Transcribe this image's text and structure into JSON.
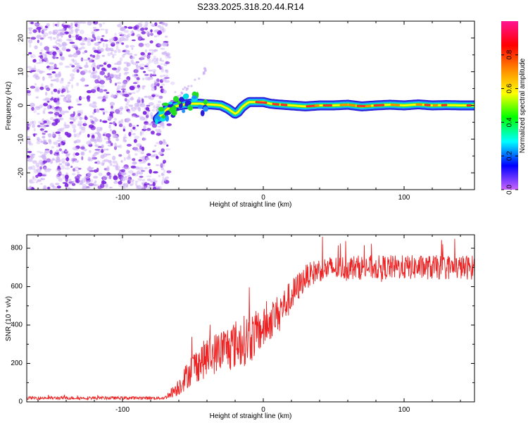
{
  "title": "S233.2025.318.20.44.R14",
  "colors": {
    "snr_line": "#ee2222",
    "scatter_purple": "#7a1fe0",
    "scatter_light": "#cdb2f5",
    "colorbar_stops": [
      "#cc66ff",
      "#0000ff",
      "#00ffff",
      "#00ff00",
      "#ffff00",
      "#ff8800",
      "#ff0000",
      "#ff1493"
    ]
  },
  "chart_data": [
    {
      "type": "heatmap",
      "name": "spectrogram",
      "xlabel": "Height of straight line (km)",
      "ylabel": "Frequency (Hz)",
      "xlim": [
        -168,
        150
      ],
      "ylim": [
        -25,
        25
      ],
      "x_ticks": [
        -100,
        0,
        100
      ],
      "x_tick_labels": [
        "-100",
        "0",
        "100"
      ],
      "y_ticks": [
        -20,
        -10,
        0,
        10,
        20
      ],
      "y_tick_labels": [
        "-20",
        "-10",
        "0",
        "10",
        "20"
      ],
      "noise_region_x": [
        -168,
        -68
      ],
      "ridge": {
        "x": [
          -75,
          -68,
          -60,
          -52,
          -45,
          -40,
          -35,
          -30,
          -25,
          -20,
          -18,
          -15,
          -12,
          -10,
          -5,
          0,
          5,
          10,
          20,
          30,
          40,
          50,
          60,
          70,
          80,
          90,
          100,
          110,
          120,
          130,
          140,
          150
        ],
        "y": [
          -4,
          -1,
          0,
          0.5,
          0.5,
          0.3,
          0.2,
          0,
          -1,
          -2.5,
          -2,
          -0.5,
          0.5,
          1,
          1,
          1,
          0.5,
          0.3,
          0,
          -0.3,
          0,
          0,
          0.2,
          -0.3,
          0,
          0.2,
          0,
          0.3,
          0,
          0.1,
          0,
          0
        ]
      },
      "colorbar": {
        "label": "Normalized spectral amplitude",
        "range": [
          0,
          1
        ],
        "ticks": [
          0.0,
          0.2,
          0.4,
          0.6,
          0.8
        ],
        "tick_labels": [
          "0.0",
          "0.2",
          "0.4",
          "0.6",
          "0.8"
        ]
      }
    },
    {
      "type": "line",
      "name": "snr",
      "xlabel": "Height of straight line (km)",
      "ylabel": "SNR (10 * v/v)",
      "xlim": [
        -168,
        150
      ],
      "ylim": [
        0,
        870
      ],
      "x_ticks": [
        -100,
        0,
        100
      ],
      "x_tick_labels": [
        "-100",
        "0",
        "100"
      ],
      "y_ticks": [
        0,
        200,
        400,
        600,
        800
      ],
      "y_tick_labels": [
        "0",
        "200",
        "400",
        "600",
        "800"
      ],
      "envelope": {
        "x": [
          -168,
          -70,
          -60,
          -50,
          -40,
          -30,
          -20,
          -10,
          0,
          10,
          20,
          30,
          40,
          60,
          80,
          100,
          120,
          140,
          150
        ],
        "y": [
          20,
          20,
          80,
          180,
          230,
          270,
          300,
          330,
          380,
          460,
          550,
          650,
          690,
          700,
          700,
          700,
          700,
          700,
          700
        ]
      },
      "spread": {
        "x": [
          -168,
          -70,
          -60,
          -50,
          -40,
          -30,
          -20,
          -10,
          0,
          10,
          20,
          30,
          40,
          60,
          80,
          100,
          120,
          140,
          150
        ],
        "y": [
          10,
          10,
          60,
          110,
          130,
          140,
          160,
          170,
          130,
          120,
          110,
          80,
          80,
          80,
          80,
          80,
          80,
          80,
          80
        ]
      },
      "samples": 1200
    }
  ]
}
